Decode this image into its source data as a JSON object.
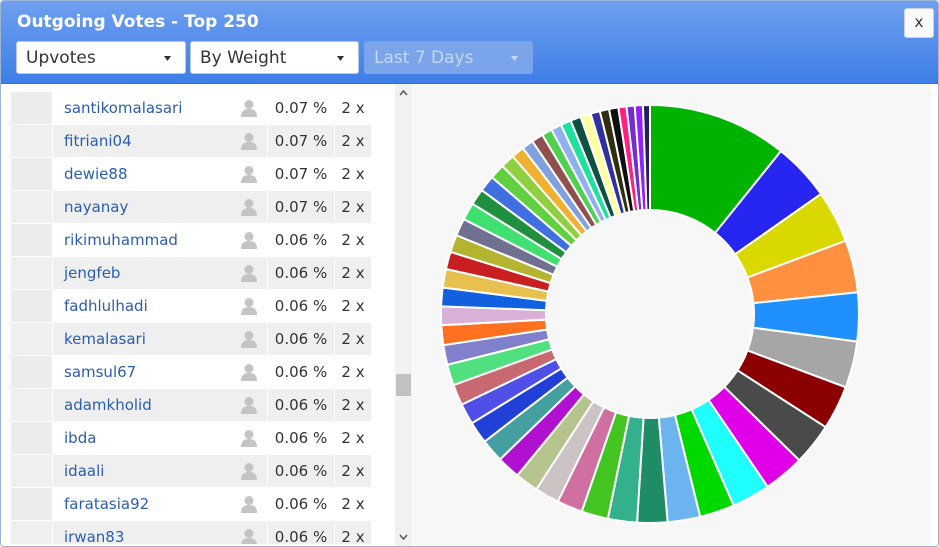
{
  "header": {
    "title": "Outgoing Votes - Top 250",
    "close": "x",
    "filters": [
      "Upvotes",
      "By Weight",
      "Last 7 Days"
    ]
  },
  "table": {
    "rows": [
      [
        "santikomalasari",
        "0.07 %",
        "2 x"
      ],
      [
        "fitriani04",
        "0.07 %",
        "2 x"
      ],
      [
        "dewie88",
        "0.07 %",
        "2 x"
      ],
      [
        "nayanay",
        "0.07 %",
        "2 x"
      ],
      [
        "rikimuhammad",
        "0.06 %",
        "2 x"
      ],
      [
        "jengfeb",
        "0.06 %",
        "2 x"
      ],
      [
        "fadhlulhadi",
        "0.06 %",
        "2 x"
      ],
      [
        "kemalasari",
        "0.06 %",
        "2 x"
      ],
      [
        "samsul67",
        "0.06 %",
        "2 x"
      ],
      [
        "adamkholid",
        "0.06 %",
        "2 x"
      ],
      [
        "ibda",
        "0.06 %",
        "2 x"
      ],
      [
        "idaali",
        "0.06 %",
        "2 x"
      ],
      [
        "faratasia92",
        "0.06 %",
        "2 x"
      ],
      [
        "irwan83",
        "0.06 %",
        "2 x"
      ]
    ]
  },
  "chart_data": {
    "type": "donut",
    "values": [
      12,
      5,
      4.5,
      4.5,
      4.2,
      4,
      3.8,
      3.6,
      3.5,
      3.3,
      3,
      2.8,
      2.6,
      2.5,
      2.3,
      2.2,
      2.1,
      2,
      2,
      2,
      1.9,
      1.8,
      1.8,
      1.8,
      1.7,
      1.7,
      1.6,
      1.6,
      1.6,
      1.5,
      1.5,
      1.5,
      1.5,
      1.4,
      1.4,
      1.3,
      1.2,
      1.1,
      1,
      1,
      0.9,
      0.9,
      0.9,
      0.9,
      0.9,
      0.8,
      0.8,
      0.8,
      0.7,
      0.7,
      0.7,
      0.6
    ],
    "colors": [
      "#00b300",
      "#2626f0",
      "#d9d900",
      "#ff9040",
      "#2090ff",
      "#a6a6a6",
      "#8b0000",
      "#4a4a4a",
      "#e000e8",
      "#20ffff",
      "#00d900",
      "#6cb4f0",
      "#1e8c64",
      "#33b08c",
      "#44c420",
      "#d070a0",
      "#ccc4c4",
      "#b4c48c",
      "#b010d0",
      "#44a0a0",
      "#2040d8",
      "#5050e8",
      "#c86870",
      "#50e080",
      "#8080cc",
      "#ff7020",
      "#d8b0d8",
      "#1060e0",
      "#e8c050",
      "#c82020",
      "#b4b430",
      "#707090",
      "#40e070",
      "#209040",
      "#4070e0",
      "#60d040",
      "#90d040",
      "#f0b030",
      "#80a0e0",
      "#905050",
      "#50d050",
      "#90b0f0",
      "#20e0a0",
      "#105040",
      "#ffffa0",
      "#3030a0",
      "#303010",
      "#101010",
      "#ff2080",
      "#7030d0",
      "#9020ff",
      "#202060"
    ]
  }
}
